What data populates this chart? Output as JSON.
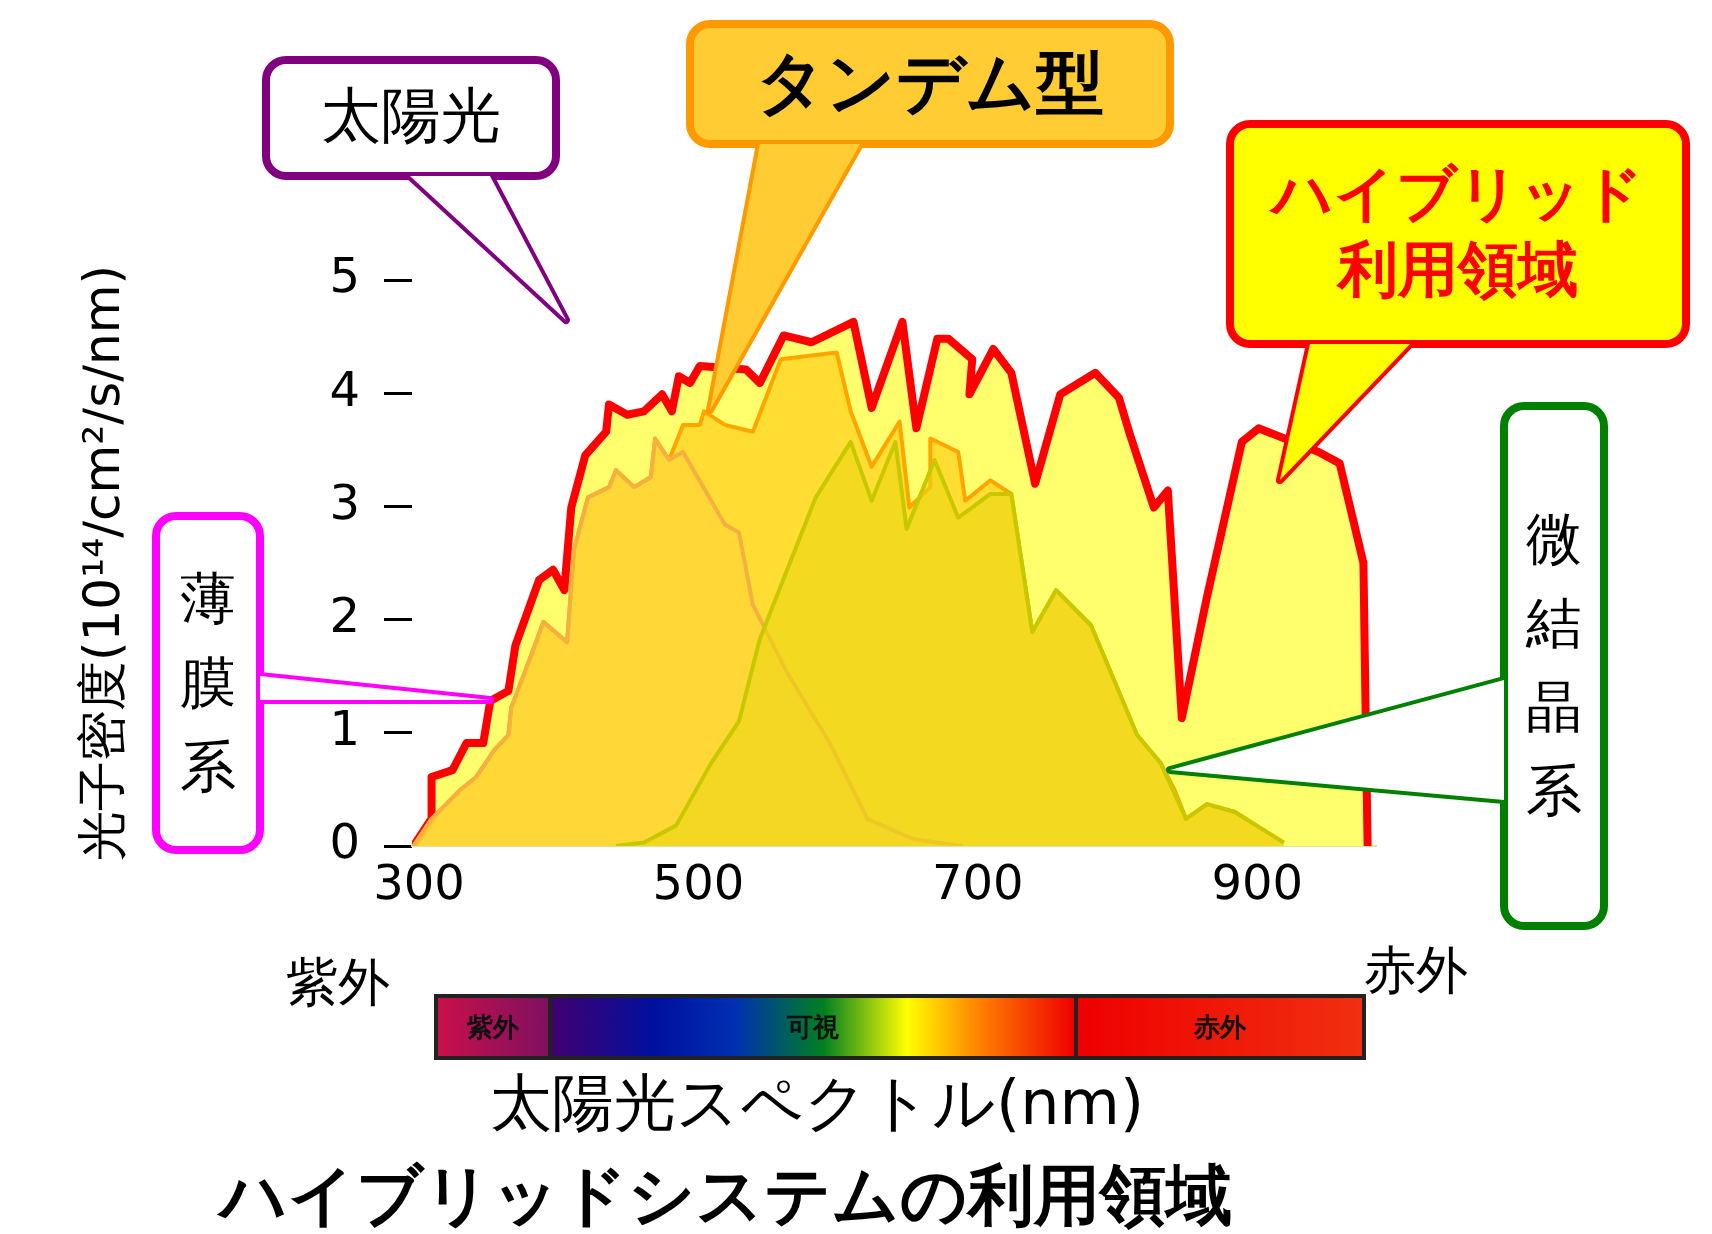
{
  "chart_data": {
    "type": "area",
    "title": "ハイブリッドシステムの利用領域",
    "xlabel": "太陽光スペクトル(nm)",
    "ylabel": "光子密度(10¹⁴/cm²/s/nm)",
    "xlim": [
      295,
      985
    ],
    "xticks": [
      300,
      500,
      700,
      900
    ],
    "ylim": [
      0,
      5
    ],
    "yticks": [
      0,
      1,
      2,
      3,
      4,
      5
    ],
    "grid": false,
    "legend": false,
    "series": [
      {
        "color": "#ff0000",
        "x": [
          296,
          309,
          309,
          324,
          334,
          346,
          351,
          364,
          369,
          386,
          396,
          404,
          409,
          419,
          434,
          436,
          449,
          461,
          474,
          481,
          486,
          494,
          501,
          534,
          544,
          561,
          581,
          611,
          624,
          646,
          656,
          671,
          679,
          696,
          694,
          711,
          724,
          741,
          759,
          784,
          801,
          809,
          826,
          836,
          846,
          864,
          889,
          901,
          944,
          959,
          976,
          979
        ],
        "values": [
          0,
          0.24,
          0.61,
          0.67,
          0.91,
          0.91,
          1.28,
          1.37,
          1.77,
          2.35,
          2.44,
          2.26,
          2.99,
          3.45,
          3.66,
          3.9,
          3.81,
          3.84,
          3.99,
          3.84,
          4.15,
          4.09,
          4.24,
          4.21,
          4.09,
          4.51,
          4.45,
          4.63,
          3.87,
          4.63,
          3.69,
          4.48,
          4.48,
          4.3,
          3.99,
          4.39,
          4.18,
          3.2,
          3.99,
          4.18,
          3.96,
          3.63,
          2.99,
          3.14,
          1.13,
          2.2,
          3.57,
          3.69,
          3.48,
          3.38,
          2.5,
          0
        ]
      },
      {
        "color": "#ffa500",
        "x": [
          296,
          309,
          329,
          341,
          354,
          364,
          366,
          381,
          389,
          406,
          411,
          421,
          436,
          441,
          454,
          466,
          469,
          479,
          489,
          501,
          504,
          519,
          539,
          559,
          599,
          609,
          624,
          644,
          651,
          666,
          666,
          686,
          691,
          709,
          724,
          739,
          756,
          781,
          814,
          831,
          841,
          849,
          864,
          884,
          919
        ],
        "values": [
          0,
          0.24,
          0.49,
          0.61,
          0.85,
          0.98,
          1.22,
          1.71,
          1.98,
          1.8,
          2.62,
          3.08,
          3.17,
          3.32,
          3.17,
          3.26,
          3.6,
          3.41,
          3.72,
          3.72,
          3.84,
          3.72,
          3.66,
          4.3,
          4.36,
          3.84,
          3.35,
          3.75,
          2.99,
          3.17,
          3.6,
          3.48,
          3.05,
          3.23,
          3.11,
          1.89,
          2.26,
          1.95,
          0.98,
          0.73,
          0.49,
          0.24,
          0.37,
          0.3,
          0.03
        ]
      },
      {
        "color": "#f5b040",
        "x": [
          296,
          309,
          329,
          341,
          354,
          364,
          366,
          381,
          389,
          406,
          411,
          421,
          436,
          441,
          454,
          466,
          469,
          479,
          489,
          519,
          529,
          539,
          564,
          594,
          621,
          654,
          689
        ],
        "values": [
          0,
          0.24,
          0.49,
          0.61,
          0.85,
          0.98,
          1.22,
          1.71,
          1.98,
          1.8,
          2.62,
          3.08,
          3.17,
          3.32,
          3.17,
          3.26,
          3.6,
          3.41,
          3.48,
          2.84,
          2.77,
          2.13,
          1.52,
          0.91,
          0.24,
          0.06,
          0
        ]
      },
      {
        "color": "#c8c800",
        "x": [
          441,
          461,
          484,
          509,
          529,
          544,
          584,
          609,
          624,
          641,
          649,
          669,
          686,
          709,
          724,
          739,
          756,
          781,
          814,
          831,
          849,
          864,
          884,
          919
        ],
        "values": [
          0,
          0.03,
          0.18,
          0.73,
          1.1,
          1.83,
          3.08,
          3.57,
          3.05,
          3.57,
          2.8,
          3.41,
          2.9,
          3.11,
          3.11,
          1.89,
          2.26,
          1.95,
          0.98,
          0.73,
          0.24,
          0.37,
          0.3,
          0.03
        ]
      }
    ],
    "annotations": [
      "太陽光",
      "タンデム型",
      "ハイブリッド利用領域",
      "薄膜系",
      "微結晶系",
      "紫外",
      "赤外",
      "紫外",
      "可視",
      "赤外"
    ]
  }
}
